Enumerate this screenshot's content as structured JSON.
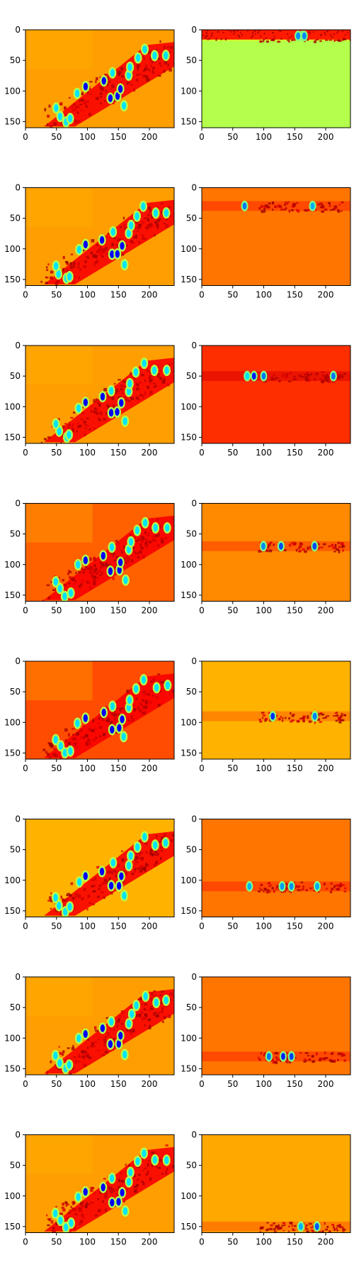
{
  "figure": {
    "rows": 8,
    "cols": 2,
    "background": "#ffffff"
  },
  "colormap": {
    "name": "jet"
  },
  "axes_common": {
    "xlim": [
      0,
      240
    ],
    "ylim": [
      160,
      0
    ],
    "x_ticks": [
      0,
      50,
      100,
      150,
      200
    ],
    "y_ticks": [
      0,
      50,
      100,
      150
    ]
  },
  "chart_data": [
    {
      "type": "heatmap",
      "row": 1,
      "col": 1,
      "panel": "left",
      "base_level": 0.72,
      "band_y": null
    },
    {
      "type": "heatmap",
      "row": 1,
      "col": 2,
      "panel": "right",
      "base_level": 0.55,
      "band_y": 10
    },
    {
      "type": "heatmap",
      "row": 2,
      "col": 1,
      "panel": "left",
      "base_level": 0.72,
      "band_y": null
    },
    {
      "type": "heatmap",
      "row": 2,
      "col": 2,
      "panel": "right",
      "base_level": 0.76,
      "band_y": 30
    },
    {
      "type": "heatmap",
      "row": 3,
      "col": 1,
      "panel": "left",
      "base_level": 0.72,
      "band_y": null
    },
    {
      "type": "heatmap",
      "row": 3,
      "col": 2,
      "panel": "right",
      "base_level": 0.83,
      "band_y": 50
    },
    {
      "type": "heatmap",
      "row": 4,
      "col": 1,
      "panel": "left",
      "base_level": 0.78,
      "band_y": null
    },
    {
      "type": "heatmap",
      "row": 4,
      "col": 2,
      "panel": "right",
      "base_level": 0.74,
      "band_y": 70
    },
    {
      "type": "heatmap",
      "row": 5,
      "col": 1,
      "panel": "left",
      "base_level": 0.8,
      "band_y": null
    },
    {
      "type": "heatmap",
      "row": 5,
      "col": 2,
      "panel": "right",
      "base_level": 0.7,
      "band_y": 90
    },
    {
      "type": "heatmap",
      "row": 6,
      "col": 1,
      "panel": "left",
      "base_level": 0.7,
      "band_y": null
    },
    {
      "type": "heatmap",
      "row": 6,
      "col": 2,
      "panel": "right",
      "base_level": 0.76,
      "band_y": 110
    },
    {
      "type": "heatmap",
      "row": 7,
      "col": 1,
      "panel": "left",
      "base_level": 0.72,
      "band_y": null
    },
    {
      "type": "heatmap",
      "row": 7,
      "col": 2,
      "panel": "right",
      "base_level": 0.76,
      "band_y": 130
    },
    {
      "type": "heatmap",
      "row": 8,
      "col": 1,
      "panel": "left",
      "base_level": 0.72,
      "band_y": null
    },
    {
      "type": "heatmap",
      "row": 8,
      "col": 2,
      "panel": "right",
      "base_level": 0.71,
      "band_y": 150
    }
  ]
}
